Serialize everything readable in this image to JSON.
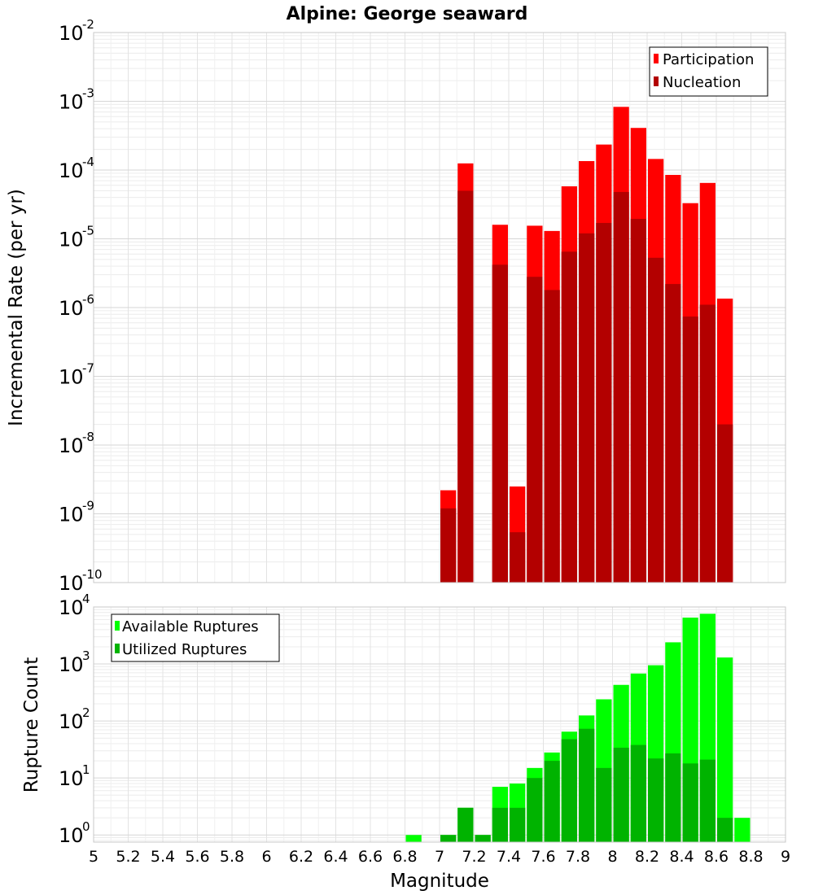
{
  "chart_data": [
    {
      "type": "bar",
      "title": "Alpine: George seaward",
      "xlabel": "",
      "ylabel": "Incremental Rate (per yr)",
      "yscale": "log",
      "ylim": [
        1e-10,
        0.01
      ],
      "xlim": [
        5,
        9
      ],
      "grid": true,
      "legend": "top-right",
      "y_tick_labels": [
        {
          "base": "10",
          "exp": "-10"
        },
        {
          "base": "10",
          "exp": "-9"
        },
        {
          "base": "10",
          "exp": "-8"
        },
        {
          "base": "10",
          "exp": "-7"
        },
        {
          "base": "10",
          "exp": "-6"
        },
        {
          "base": "10",
          "exp": "-5"
        },
        {
          "base": "10",
          "exp": "-4"
        },
        {
          "base": "10",
          "exp": "-3"
        },
        {
          "base": "10",
          "exp": "-2"
        }
      ],
      "series": [
        {
          "name": "Participation",
          "color": "#ff0000",
          "points": [
            {
              "x": 7.0,
              "y": 2.2e-09
            },
            {
              "x": 7.1,
              "y": 0.000125
            },
            {
              "x": 7.3,
              "y": 1.6e-05
            },
            {
              "x": 7.4,
              "y": 2.5e-09
            },
            {
              "x": 7.5,
              "y": 1.55e-05
            },
            {
              "x": 7.6,
              "y": 1.3e-05
            },
            {
              "x": 7.7,
              "y": 5.8e-05
            },
            {
              "x": 7.8,
              "y": 0.000135
            },
            {
              "x": 7.9,
              "y": 0.000235
            },
            {
              "x": 8.0,
              "y": 0.00083
            },
            {
              "x": 8.1,
              "y": 0.00041
            },
            {
              "x": 8.2,
              "y": 0.000145
            },
            {
              "x": 8.3,
              "y": 8.5e-05
            },
            {
              "x": 8.4,
              "y": 3.3e-05
            },
            {
              "x": 8.5,
              "y": 6.5e-05
            },
            {
              "x": 8.6,
              "y": 1.35e-06
            }
          ]
        },
        {
          "name": "Nucleation",
          "color": "#b30000",
          "points": [
            {
              "x": 7.0,
              "y": 1.2e-09
            },
            {
              "x": 7.1,
              "y": 5e-05
            },
            {
              "x": 7.3,
              "y": 4.2e-06
            },
            {
              "x": 7.4,
              "y": 5.4e-10
            },
            {
              "x": 7.5,
              "y": 2.8e-06
            },
            {
              "x": 7.6,
              "y": 1.8e-06
            },
            {
              "x": 7.7,
              "y": 6.5e-06
            },
            {
              "x": 7.8,
              "y": 1.2e-05
            },
            {
              "x": 7.9,
              "y": 1.7e-05
            },
            {
              "x": 8.0,
              "y": 4.8e-05
            },
            {
              "x": 8.1,
              "y": 1.95e-05
            },
            {
              "x": 8.2,
              "y": 5.3e-06
            },
            {
              "x": 8.3,
              "y": 2.2e-06
            },
            {
              "x": 8.4,
              "y": 7.4e-07
            },
            {
              "x": 8.5,
              "y": 1.1e-06
            },
            {
              "x": 8.6,
              "y": 2e-08
            }
          ]
        }
      ]
    },
    {
      "type": "bar",
      "title": "",
      "xlabel": "Magnitude",
      "ylabel": "Rupture Count",
      "yscale": "log",
      "ylim": [
        0.75,
        10000
      ],
      "xlim": [
        5,
        9
      ],
      "grid": true,
      "legend": "top-left",
      "x_tick_labels": [
        "5",
        "5.2",
        "5.4",
        "5.6",
        "5.8",
        "6",
        "6.2",
        "6.4",
        "6.6",
        "6.8",
        "7",
        "7.2",
        "7.4",
        "7.6",
        "7.8",
        "8",
        "8.2",
        "8.4",
        "8.6",
        "8.8",
        "9"
      ],
      "y_tick_labels": [
        {
          "base": "10",
          "exp": "0"
        },
        {
          "base": "10",
          "exp": "1"
        },
        {
          "base": "10",
          "exp": "2"
        },
        {
          "base": "10",
          "exp": "3"
        },
        {
          "base": "10",
          "exp": "4"
        }
      ],
      "series": [
        {
          "name": "Available Ruptures",
          "color": "#00ff00",
          "points": [
            {
              "x": 6.8,
              "y": 1
            },
            {
              "x": 7.0,
              "y": 1
            },
            {
              "x": 7.1,
              "y": 3
            },
            {
              "x": 7.2,
              "y": 1
            },
            {
              "x": 7.3,
              "y": 7
            },
            {
              "x": 7.4,
              "y": 8
            },
            {
              "x": 7.5,
              "y": 15
            },
            {
              "x": 7.6,
              "y": 28
            },
            {
              "x": 7.7,
              "y": 65
            },
            {
              "x": 7.8,
              "y": 125
            },
            {
              "x": 7.9,
              "y": 240
            },
            {
              "x": 8.0,
              "y": 430
            },
            {
              "x": 8.1,
              "y": 680
            },
            {
              "x": 8.2,
              "y": 950
            },
            {
              "x": 8.3,
              "y": 2400
            },
            {
              "x": 8.4,
              "y": 6500
            },
            {
              "x": 8.5,
              "y": 7600
            },
            {
              "x": 8.6,
              "y": 1300
            },
            {
              "x": 8.7,
              "y": 2
            }
          ]
        },
        {
          "name": "Utilized Ruptures",
          "color": "#00b300",
          "points": [
            {
              "x": 7.0,
              "y": 1
            },
            {
              "x": 7.1,
              "y": 3
            },
            {
              "x": 7.2,
              "y": 1
            },
            {
              "x": 7.3,
              "y": 3
            },
            {
              "x": 7.4,
              "y": 3
            },
            {
              "x": 7.5,
              "y": 10
            },
            {
              "x": 7.6,
              "y": 20
            },
            {
              "x": 7.7,
              "y": 48
            },
            {
              "x": 7.8,
              "y": 73
            },
            {
              "x": 7.9,
              "y": 15
            },
            {
              "x": 8.0,
              "y": 34
            },
            {
              "x": 8.1,
              "y": 38
            },
            {
              "x": 8.2,
              "y": 22
            },
            {
              "x": 8.3,
              "y": 27
            },
            {
              "x": 8.4,
              "y": 18
            },
            {
              "x": 8.5,
              "y": 21
            },
            {
              "x": 8.6,
              "y": 2
            }
          ]
        }
      ]
    }
  ]
}
